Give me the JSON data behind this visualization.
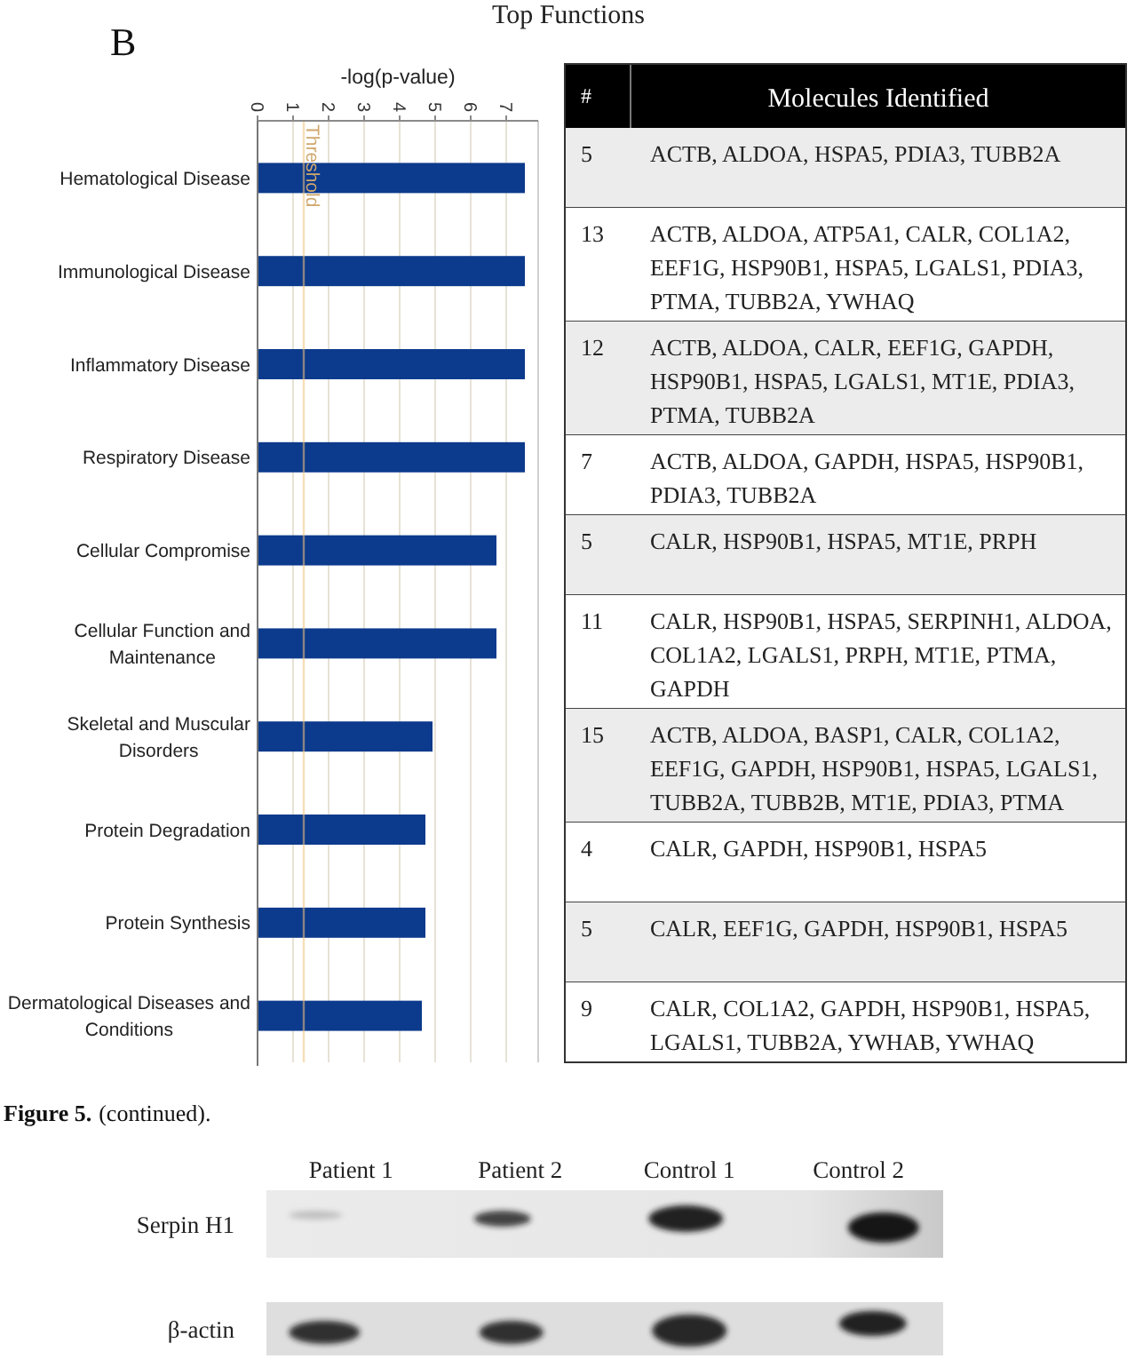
{
  "chart_data": [
    {
      "type": "bar",
      "orientation": "horizontal",
      "title": "Top Functions",
      "xlabel": "-log(p-value)",
      "categories": [
        "Hematological Disease",
        "Immunological Disease",
        "Inflammatory Disease",
        "Respiratory Disease",
        "Cellular Compromise",
        "Cellular Function and Maintenance",
        "Skeletal and Muscular Disorders",
        "Protein Degradation",
        "Protein Synthesis",
        "Dermatological Diseases and Conditions"
      ],
      "values": [
        7.5,
        7.5,
        7.5,
        7.5,
        6.7,
        6.7,
        4.9,
        4.7,
        4.7,
        4.6
      ],
      "color": "#0c3a8c",
      "xlim": [
        0,
        7.9
      ],
      "xticks": [
        0,
        1,
        2,
        3,
        4,
        5,
        6,
        7
      ],
      "grid": "x",
      "ref_lines": [
        {
          "axis": "x",
          "value": 1.3,
          "label": "Threshold",
          "color": "#f0c27e"
        }
      ],
      "annotations": [
        "B",
        "Figure 5.",
        "(continued)."
      ]
    },
    {
      "type": "other",
      "annotations": [
        "#",
        "Molecules Identified",
        "5",
        "ACTB, ALDOA, HSPA5, PDIA3, TUBB2A",
        "13",
        "ACTB, ALDOA, ATP5A1, CALR, COL1A2, EEF1G, HSP90B1, HSPA5, LGALS1, PDIA3, PTMA, TUBB2A, YWHAQ",
        "12",
        "ACTB, ALDOA, CALR, EEF1G, GAPDH, HSP90B1, HSPA5, LGALS1, MT1E, PDIA3, PTMA, TUBB2A",
        "7",
        "ACTB, ALDOA, GAPDH, HSPA5, HSP90B1, PDIA3, TUBB2A",
        "5",
        "CALR, HSP90B1, HSPA5, MT1E, PRPH",
        "11",
        "CALR, HSP90B1, HSPA5, SERPINH1, ALDOA, COL1A2, LGALS1, PRPH, MT1E, PTMA, GAPDH",
        "15",
        "ACTB, ALDOA, BASP1, CALR, COL1A2, EEF1G, GAPDH, HSP90B1, HSPA5, LGALS1, TUBB2A, TUBB2B, MT1E, PDIA3, PTMA",
        "4",
        "CALR, GAPDH, HSP90B1, HSPA5",
        "5",
        "CALR, EEF1G, GAPDH, HSP90B1, HSPA5",
        "9",
        "CALR, COL1A2, GAPDH, HSP90B1, HSPA5, LGALS1, TUBB2A, YWHAB, YWHAQ"
      ]
    },
    {
      "type": "other",
      "annotations": [
        "Patient 1",
        "Patient 2",
        "Control 1",
        "Control 2",
        "Serpin H1",
        "β-actin"
      ]
    }
  ]
}
